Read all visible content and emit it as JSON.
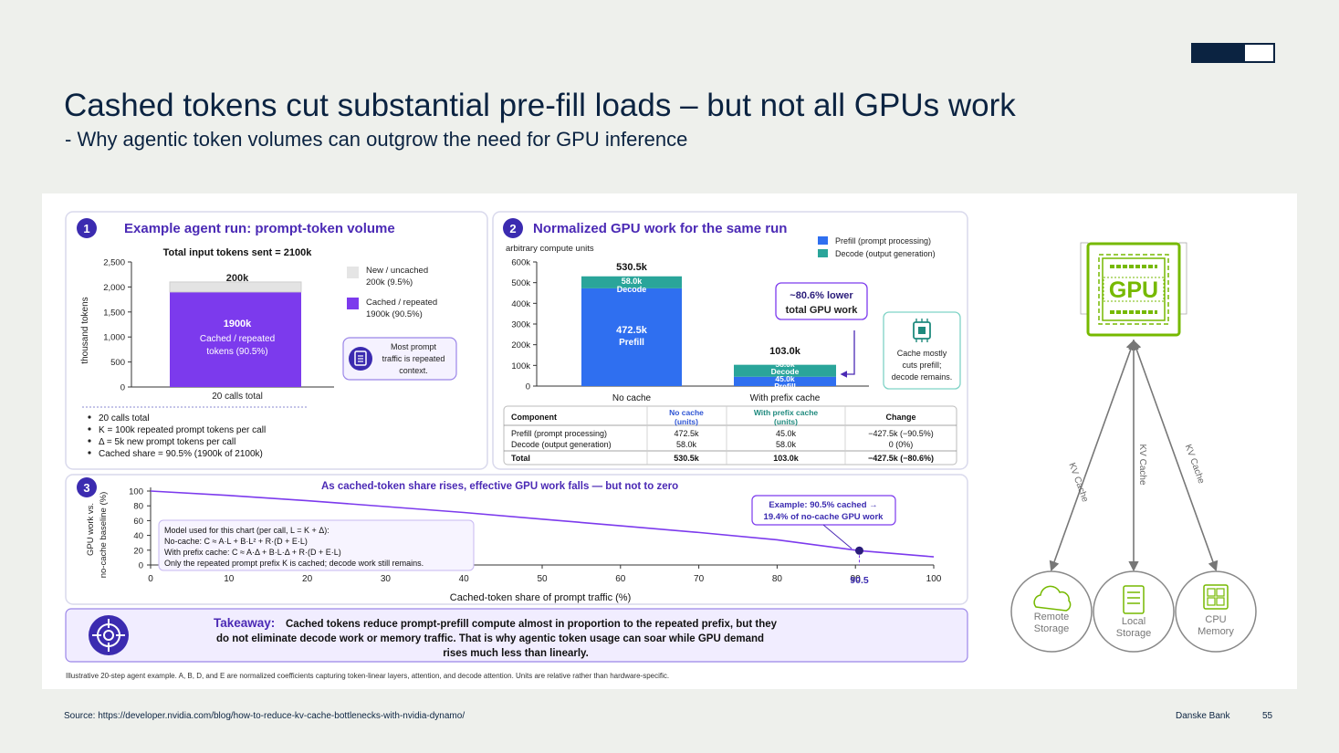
{
  "header": {
    "title": "Cashed tokens cut substantial pre-fill loads – but not all GPUs work",
    "subtitle": "- Why agentic token volumes can outgrow the need for GPU inference"
  },
  "colors": {
    "navy": "#0b2341",
    "purple": "#7c3aed",
    "blue": "#2f6ff0",
    "teal": "#2aa59a",
    "gpu_green": "#76b900"
  },
  "footer": {
    "source": "Source: https://developer.nvidia.com/blog/how-to-reduce-kv-cache-bottlenecks-with-nvidia-dynamo/",
    "brand": "Danske Bank",
    "page": "55"
  },
  "panel1": {
    "num": "1",
    "title": "Example agent run: prompt-token volume",
    "chart_title": "Total input tokens sent = 2100k",
    "bar_top_label": "200k",
    "bar_main_label_1": "1900k",
    "bar_main_label_2": "Cached / repeated",
    "bar_main_label_3": "tokens (90.5%)",
    "legend": [
      {
        "line1": "New / uncached",
        "line2": "200k (9.5%)",
        "color": "#e5e5e5"
      },
      {
        "line1": "Cached / repeated",
        "line2": "1900k (90.5%)",
        "color": "#7c3aed"
      }
    ],
    "callout": [
      "Most prompt",
      "traffic is repeated",
      "context."
    ],
    "icon": "document-icon",
    "bullets": [
      "20 calls total",
      "K = 100k repeated prompt tokens per call",
      "Δ = 5k new prompt tokens per call",
      "Cached share = 90.5% (1900k of 2100k)"
    ]
  },
  "panel2": {
    "num": "2",
    "title": "Normalized GPU work for the same run",
    "unit": "arbitrary compute units",
    "legend": [
      {
        "label": "Prefill (prompt processing)",
        "color": "#2f6ff0"
      },
      {
        "label": "Decode (output generation)",
        "color": "#2aa59a"
      }
    ],
    "total_labels": [
      "530.5k",
      "103.0k"
    ],
    "seg_labels": {
      "nocache_decode": [
        "58.0k",
        "Decode"
      ],
      "nocache_prefill": [
        "472.5k",
        "Prefill"
      ],
      "cache_decode": [
        "58.0k",
        "Decode"
      ],
      "cache_prefill": [
        "45.0k",
        "Prefill"
      ]
    },
    "callout": [
      "~80.6% lower",
      "total GPU work"
    ],
    "side_note": [
      "Cache mostly",
      "cuts prefill;",
      "decode remains."
    ],
    "chip_icon": "chip-icon",
    "table": {
      "headers": [
        "Component",
        "No cache (units)",
        "With prefix cache (units)",
        "Change"
      ],
      "rows": [
        [
          "Prefill (prompt processing)",
          "472.5k",
          "45.0k",
          "−427.5k (−90.5%)"
        ],
        [
          "Decode (output generation)",
          "58.0k",
          "58.0k",
          "0 (0%)"
        ],
        [
          "Total",
          "530.5k",
          "103.0k",
          "−427.5k (−80.6%)"
        ]
      ]
    }
  },
  "panel3": {
    "num": "3",
    "title": "As cached-token  share rises, effective GPU work falls — but not to zero",
    "ylabel": [
      "GPU work vs.",
      "no-cache baseline (%)"
    ],
    "model_box": [
      "Model used for this chart (per call, L = K + Δ):",
      "No-cache:   C ≈ A·L + B·L² + R·(D + E·L)",
      "With prefix cache:   C ≈ A·Δ + B·L·Δ + R·(D + E·L)",
      "Only the repeated prompt prefix K is cached; decode work still remains."
    ],
    "callout": [
      "Example: 90.5% cached →",
      "19.4% of no-cache GPU work"
    ],
    "highlight_tick": "90.5"
  },
  "takeaway": {
    "lead": "Takeaway:",
    "line1": "Cached tokens reduce prompt-prefill compute almost in proportion to the repeated prefix, but they",
    "line2": "do not eliminate decode work or memory traffic. That is why agentic token usage can soar while GPU demand",
    "line3": "rises much less than linearly.",
    "icon": "target-icon"
  },
  "footnote": "Illustrative 20-step agent example. A, B, D, and E are normalized coefficients capturing token-linear layers, attention, and decode attention. Units are relative rather than hardware-specific.",
  "diagram": {
    "gpu_label": "GPU",
    "edge_label": "KV Cache",
    "nodes": [
      {
        "line1": "Remote",
        "line2": "Storage",
        "icon": "cloud-icon"
      },
      {
        "line1": "Local",
        "line2": "Storage",
        "icon": "disk-icon"
      },
      {
        "line1": "CPU",
        "line2": "Memory",
        "icon": "memory-icon"
      }
    ]
  },
  "chart_data": [
    {
      "type": "bar",
      "title": "Total input tokens sent = 2100k",
      "ylabel": "thousand tokens",
      "categories": [
        "20 calls total"
      ],
      "ylim": [
        0,
        2500
      ],
      "yticks": [
        0,
        500,
        1000,
        1500,
        2000,
        2500
      ],
      "series": [
        {
          "name": "Cached / repeated",
          "values": [
            1900
          ]
        },
        {
          "name": "New / uncached",
          "values": [
            200
          ]
        }
      ],
      "stacked": true
    },
    {
      "type": "bar",
      "ylabel": "arbitrary compute units",
      "categories": [
        "No cache",
        "With prefix cache"
      ],
      "ylim": [
        0,
        600
      ],
      "yticks": [
        0,
        100,
        200,
        300,
        400,
        500,
        600
      ],
      "series": [
        {
          "name": "Prefill (prompt processing)",
          "values": [
            472.5,
            45.0
          ]
        },
        {
          "name": "Decode (output generation)",
          "values": [
            58.0,
            58.0
          ]
        }
      ],
      "stacked": true
    },
    {
      "type": "line",
      "title": "As cached-token  share rises, effective GPU work falls — but not to zero",
      "xlabel": "Cached-token share of prompt traffic (%)",
      "ylabel": "GPU work vs. no-cache baseline (%)",
      "xlim": [
        0,
        100
      ],
      "ylim": [
        0,
        100
      ],
      "xticks": [
        0,
        10,
        20,
        30,
        40,
        50,
        60,
        70,
        80,
        90,
        100
      ],
      "yticks": [
        0,
        20,
        40,
        60,
        80,
        100
      ],
      "x": [
        0,
        10,
        20,
        30,
        40,
        50,
        60,
        70,
        80,
        90.5,
        100
      ],
      "y": [
        100,
        94,
        87,
        79,
        71,
        62,
        53,
        44,
        34,
        19.4,
        11
      ],
      "highlight": {
        "x": 90.5,
        "y": 19.4
      }
    }
  ]
}
